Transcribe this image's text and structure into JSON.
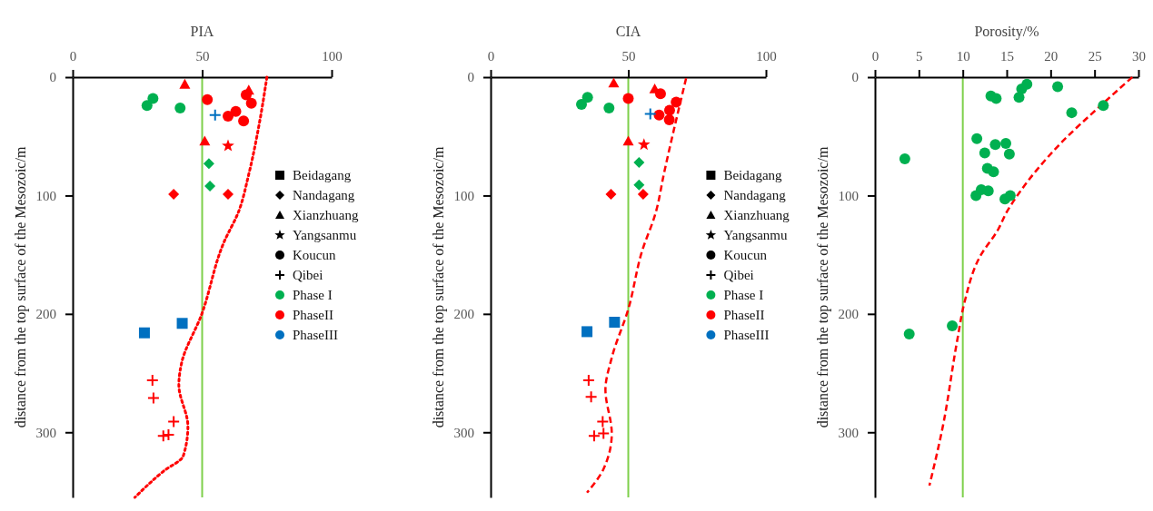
{
  "chart_data": [
    {
      "type": "scatter",
      "xlabel": "PIA",
      "ylabel": "distance from the top surface of the Mesozoic/m",
      "xlim": [
        0,
        100
      ],
      "xticks": [
        0,
        50,
        100
      ],
      "ylim": [
        355,
        0
      ],
      "yticks": [
        0,
        100,
        200,
        300
      ],
      "legend": "right",
      "annotations": [
        "Beidagang",
        "Nandagang",
        "Xianzhuang",
        "Yangsanmu",
        "Koucun",
        "Qibei"
      ],
      "ref_lines": [
        {
          "axis": "x",
          "value": 50,
          "color": "#7ed04b"
        }
      ],
      "series": [
        {
          "name": "Phase I",
          "marker": "circle",
          "color": "#00b050",
          "x": [
            28.7,
            31,
            41.5
          ],
          "values": [
            24,
            18,
            26
          ]
        },
        {
          "marker": "diamond",
          "color": "#00b050",
          "x": [
            52.6,
            53
          ],
          "values": [
            73,
            92
          ]
        },
        {
          "name": "PhaseII",
          "marker": "circle",
          "color": "#ff0000",
          "x": [
            52,
            67,
            69,
            60,
            63,
            66
          ],
          "values": [
            19,
            15,
            22,
            33,
            29,
            37
          ]
        },
        {
          "marker": "triangle",
          "color": "#ff0000",
          "x": [
            43.3,
            68,
            51
          ],
          "values": [
            6,
            11,
            54
          ]
        },
        {
          "marker": "star",
          "color": "#ff0000",
          "x": [
            60
          ],
          "values": [
            58
          ]
        },
        {
          "marker": "diamond",
          "color": "#ff0000",
          "x": [
            39,
            60
          ],
          "values": [
            99,
            99
          ]
        },
        {
          "marker": "cross",
          "color": "#ff0000",
          "x": [
            30.8,
            31.2,
            39,
            37,
            35
          ],
          "values": [
            256,
            271,
            291,
            302,
            303
          ]
        },
        {
          "name": "PhaseIII",
          "marker": "square",
          "color": "#0070c0",
          "x": [
            42.3,
            27.7
          ],
          "values": [
            208,
            216
          ]
        },
        {
          "marker": "cross",
          "color": "#0070c0",
          "x": [
            55
          ],
          "values": [
            32
          ]
        },
        {
          "type": "line",
          "line_style": "dotted",
          "color": "#ff0000",
          "x": [
            75,
            72,
            68,
            64,
            58.5,
            49.7,
            42,
            41,
            44.5,
            42.7,
            35,
            24
          ],
          "values": [
            0,
            40,
            82,
            114,
            139,
            201,
            242,
            260,
            295,
            320,
            333,
            355
          ]
        }
      ]
    },
    {
      "type": "scatter",
      "xlabel": "CIA",
      "ylabel": "distance from the top surface of the Mesozoic/m",
      "xlim": [
        0,
        100
      ],
      "xticks": [
        0,
        50,
        100
      ],
      "ylim": [
        355,
        0
      ],
      "yticks": [
        0,
        100,
        200,
        300
      ],
      "legend": "right",
      "annotations": [
        "Beidagang",
        "Nandagang",
        "Xianzhuang",
        "Yangsanmu",
        "Koucun",
        "Qibei"
      ],
      "ref_lines": [
        {
          "axis": "x",
          "value": 50,
          "color": "#7ed04b"
        }
      ],
      "series": [
        {
          "name": "Phase I",
          "marker": "circle",
          "color": "#00b050",
          "x": [
            33,
            35.2,
            43
          ],
          "values": [
            23,
            17,
            26
          ]
        },
        {
          "marker": "diamond",
          "color": "#00b050",
          "x": [
            53.9,
            53.9
          ],
          "values": [
            72,
            91
          ]
        },
        {
          "name": "PhaseII",
          "marker": "circle",
          "color": "#ff0000",
          "x": [
            61.7,
            50,
            67.4,
            65,
            61.2,
            64.9
          ],
          "values": [
            14,
            18,
            21,
            28,
            32,
            36
          ]
        },
        {
          "marker": "triangle",
          "color": "#ff0000",
          "x": [
            44.7,
            59.6,
            50
          ],
          "values": [
            5,
            10,
            54
          ]
        },
        {
          "marker": "star",
          "color": "#ff0000",
          "x": [
            55.7
          ],
          "values": [
            57
          ]
        },
        {
          "marker": "diamond",
          "color": "#ff0000",
          "x": [
            43.7,
            55.4
          ],
          "values": [
            99,
            99
          ]
        },
        {
          "marker": "cross",
          "color": "#ff0000",
          "x": [
            35.6,
            36.5,
            40.7,
            41,
            37.6
          ],
          "values": [
            256,
            270,
            291,
            301,
            303
          ]
        },
        {
          "name": "PhaseIII",
          "marker": "square",
          "color": "#0070c0",
          "x": [
            45,
            35
          ],
          "values": [
            207,
            215
          ]
        },
        {
          "marker": "cross",
          "color": "#0070c0",
          "x": [
            58
          ],
          "values": [
            31
          ]
        },
        {
          "type": "line",
          "line_style": "dashed",
          "color": "#ff0000",
          "x": [
            71,
            63,
            59.9,
            55,
            50,
            44,
            41.7,
            44,
            41,
            35
          ],
          "values": [
            1,
            81,
            115,
            147,
            196,
            237,
            264,
            301,
            331,
            351
          ]
        }
      ]
    },
    {
      "type": "scatter",
      "xlabel": "Porosity/%",
      "ylabel": "distance from the top surface of the Mesozoic/m",
      "xlim": [
        0,
        30
      ],
      "xticks": [
        0,
        5,
        10,
        15,
        20,
        25,
        30
      ],
      "ylim": [
        355,
        0
      ],
      "yticks": [
        0,
        100,
        200,
        300
      ],
      "ref_lines": [
        {
          "axis": "x",
          "value": 10,
          "color": "#7ed04b"
        }
      ],
      "series": [
        {
          "marker": "circle",
          "color": "#00b050",
          "x": [
            17.3,
            16.7,
            16.4,
            20.8,
            13.2,
            13.8,
            26,
            22.4,
            11.6,
            13.7,
            14.9,
            12.5,
            15.3,
            3.4,
            12.8,
            13.5,
            11.5,
            12.1,
            12.9,
            14.8,
            15.4,
            8.8,
            3.9
          ],
          "values": [
            6,
            10,
            17,
            8,
            16,
            18,
            24,
            30,
            52,
            57,
            56,
            64,
            65,
            69,
            77,
            80,
            100,
            95,
            96,
            103,
            100,
            210,
            217
          ]
        },
        {
          "type": "line",
          "line_style": "dashed",
          "color": "#ff0000",
          "x": [
            29.3,
            26,
            21,
            16.4,
            15,
            14,
            12,
            10.2,
            9.35,
            7.7,
            6.2
          ],
          "values": [
            0,
            22,
            57,
            98,
            114,
            129,
            151,
            190,
            223,
            296,
            345
          ]
        }
      ]
    }
  ]
}
